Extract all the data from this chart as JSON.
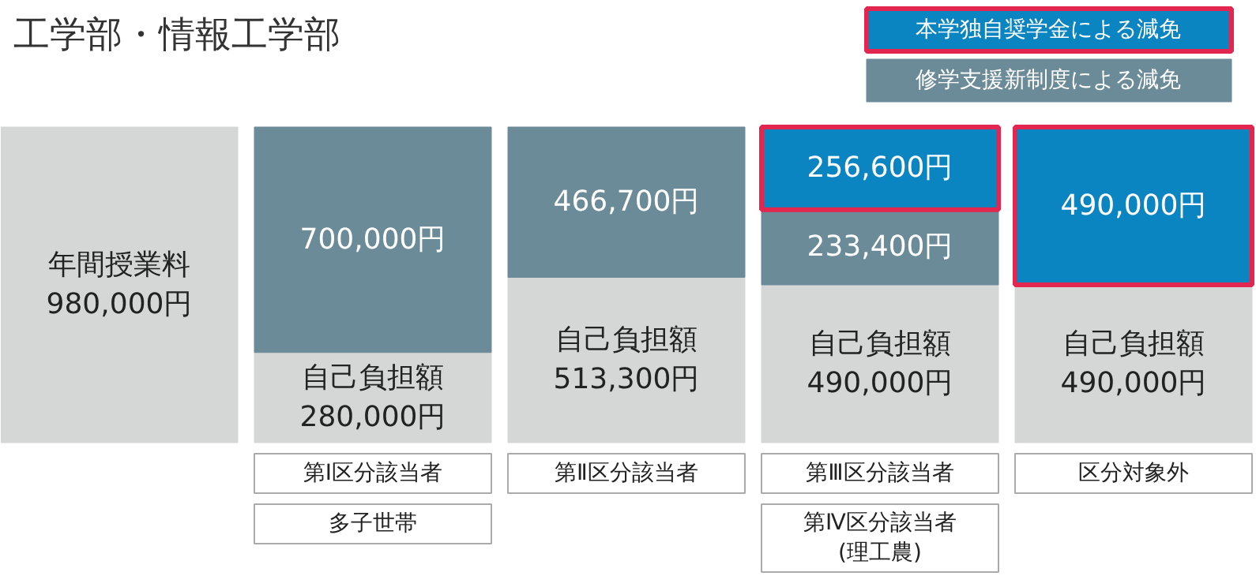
{
  "chart_data": {
    "type": "bar",
    "stacked": true,
    "title": "工学部・情報工学部",
    "categories": [
      null,
      "第Ⅰ区分該当者",
      "第Ⅱ区分該当者",
      "第Ⅲ区分該当者",
      "区分対象外"
    ],
    "series": [
      {
        "name": "年間授業料",
        "color": "#d5d7d7",
        "values": [
          980000,
          null,
          null,
          null,
          null
        ],
        "value_labels": [
          "980,000円",
          null,
          null,
          null,
          null
        ]
      },
      {
        "name": "自己負担額",
        "color": "#d5d7d7",
        "values": [
          null,
          280000,
          513300,
          490000,
          490000
        ],
        "value_labels": [
          null,
          "280,000円",
          "513,300円",
          "490,000円",
          "490,000円"
        ]
      },
      {
        "name": "修学支援新制度による減免",
        "color": "#6c8b98",
        "values": [
          null,
          700000,
          466700,
          233400,
          null
        ],
        "value_labels": [
          null,
          "700,000円",
          "466,700円",
          "233,400円",
          null
        ]
      },
      {
        "name": "本学独自奨学金による減免",
        "color": "#0b84c2",
        "values": [
          null,
          null,
          null,
          256600,
          490000
        ],
        "value_labels": [
          null,
          null,
          null,
          "256,600円",
          "490,000円"
        ]
      }
    ],
    "legend": "top right",
    "annotations": [
      "多子世帯",
      "第Ⅳ区分該当者\n(理工農)"
    ]
  }
}
